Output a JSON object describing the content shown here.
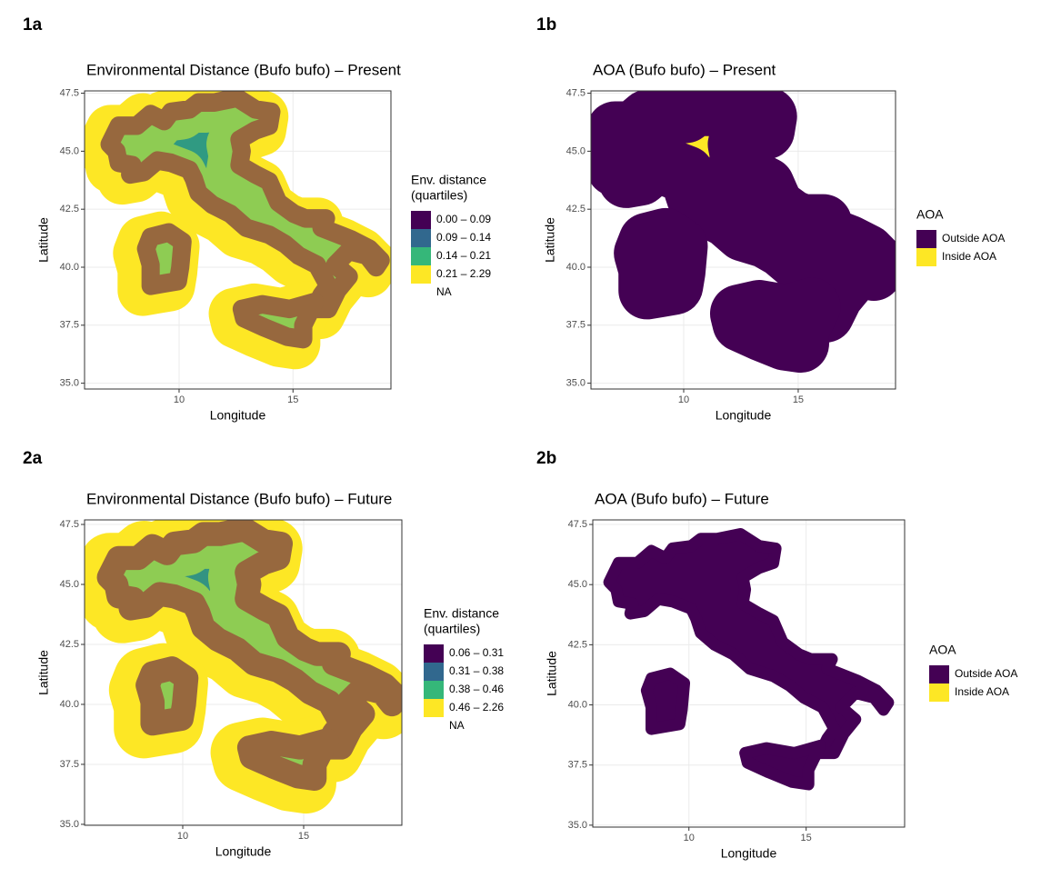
{
  "chart_data": [
    {
      "panel_label": "1a",
      "type": "map",
      "title": "Environmental Distance (Bufo bufo) – Present",
      "x_label": "Longitude",
      "y_label": "Latitude",
      "xlim": [
        5.85,
        19.3
      ],
      "ylim": [
        34.75,
        47.6
      ],
      "xticks": [
        10,
        15
      ],
      "yticks": [
        {
          "value": 35,
          "label": "35.0"
        },
        {
          "value": 37.5,
          "label": "37.5"
        },
        {
          "value": 40,
          "label": "40.0"
        },
        {
          "value": 42.5,
          "label": "42.5"
        },
        {
          "value": 45,
          "label": "45.0"
        },
        {
          "value": 47.5,
          "label": "47.5"
        }
      ],
      "grid": true,
      "legend": {
        "title": [
          "Env. distance",
          "(quartiles)"
        ],
        "items": [
          {
            "label": "0.00 – 0.09",
            "color": "#440154"
          },
          {
            "label": "0.09 – 0.14",
            "color": "#31688e"
          },
          {
            "label": "0.14 – 0.21",
            "color": "#35b779"
          },
          {
            "label": "0.21 – 2.29",
            "color": "#fde725"
          },
          {
            "label": "NA"
          }
        ]
      }
    },
    {
      "panel_label": "1b",
      "type": "map",
      "title": "AOA (Bufo bufo) – Present",
      "x_label": "Longitude",
      "y_label": "Latitude",
      "xlim": [
        5.95,
        19.25
      ],
      "ylim": [
        34.75,
        47.6
      ],
      "xticks": [
        10,
        15
      ],
      "yticks": [
        {
          "value": 35,
          "label": "35.0"
        },
        {
          "value": 37.5,
          "label": "37.5"
        },
        {
          "value": 40,
          "label": "40.0"
        },
        {
          "value": 42.5,
          "label": "42.5"
        },
        {
          "value": 45,
          "label": "45.0"
        },
        {
          "value": 47.5,
          "label": "47.5"
        }
      ],
      "grid": true,
      "legend": {
        "title": [
          "AOA"
        ],
        "items": [
          {
            "label": "Outside AOA",
            "color": "#440154"
          },
          {
            "label": "Inside AOA",
            "color": "#fde725"
          }
        ]
      }
    },
    {
      "panel_label": "2a",
      "type": "map",
      "title": "Environmental Distance (Bufo bufo) – Future",
      "x_label": "Longitude",
      "y_label": "Latitude",
      "xlim": [
        5.94,
        19.06
      ],
      "ylim": [
        34.96,
        47.69
      ],
      "xticks": [
        10,
        15
      ],
      "yticks": [
        {
          "value": 35,
          "label": "35.0"
        },
        {
          "value": 37.5,
          "label": "37.5"
        },
        {
          "value": 40,
          "label": "40.0"
        },
        {
          "value": 42.5,
          "label": "42.5"
        },
        {
          "value": 45,
          "label": "45.0"
        },
        {
          "value": 47.5,
          "label": "47.5"
        }
      ],
      "grid": true,
      "legend": {
        "title": [
          "Env. distance",
          "(quartiles)"
        ],
        "items": [
          {
            "label": "0.06 – 0.31",
            "color": "#440154"
          },
          {
            "label": "0.31 – 0.38",
            "color": "#31688e"
          },
          {
            "label": "0.38 – 0.46",
            "color": "#35b779"
          },
          {
            "label": "0.46 – 2.26",
            "color": "#fde725"
          },
          {
            "label": "NA"
          }
        ]
      }
    },
    {
      "panel_label": "2b",
      "type": "map",
      "title": "AOA (Bufo bufo) – Future",
      "x_label": "Longitude",
      "y_label": "Latitude",
      "xlim": [
        5.9,
        19.2
      ],
      "ylim": [
        34.92,
        47.69
      ],
      "xticks": [
        10,
        15
      ],
      "yticks": [
        {
          "value": 35,
          "label": "35.0"
        },
        {
          "value": 37.5,
          "label": "37.5"
        },
        {
          "value": 40,
          "label": "40.0"
        },
        {
          "value": 42.5,
          "label": "42.5"
        },
        {
          "value": 45,
          "label": "45.0"
        },
        {
          "value": 47.5,
          "label": "47.5"
        }
      ],
      "grid": true,
      "legend": {
        "title": [
          "AOA"
        ],
        "items": [
          {
            "label": "Outside AOA",
            "color": "#440154"
          },
          {
            "label": "Inside AOA",
            "color": "#fde725"
          }
        ]
      }
    }
  ]
}
